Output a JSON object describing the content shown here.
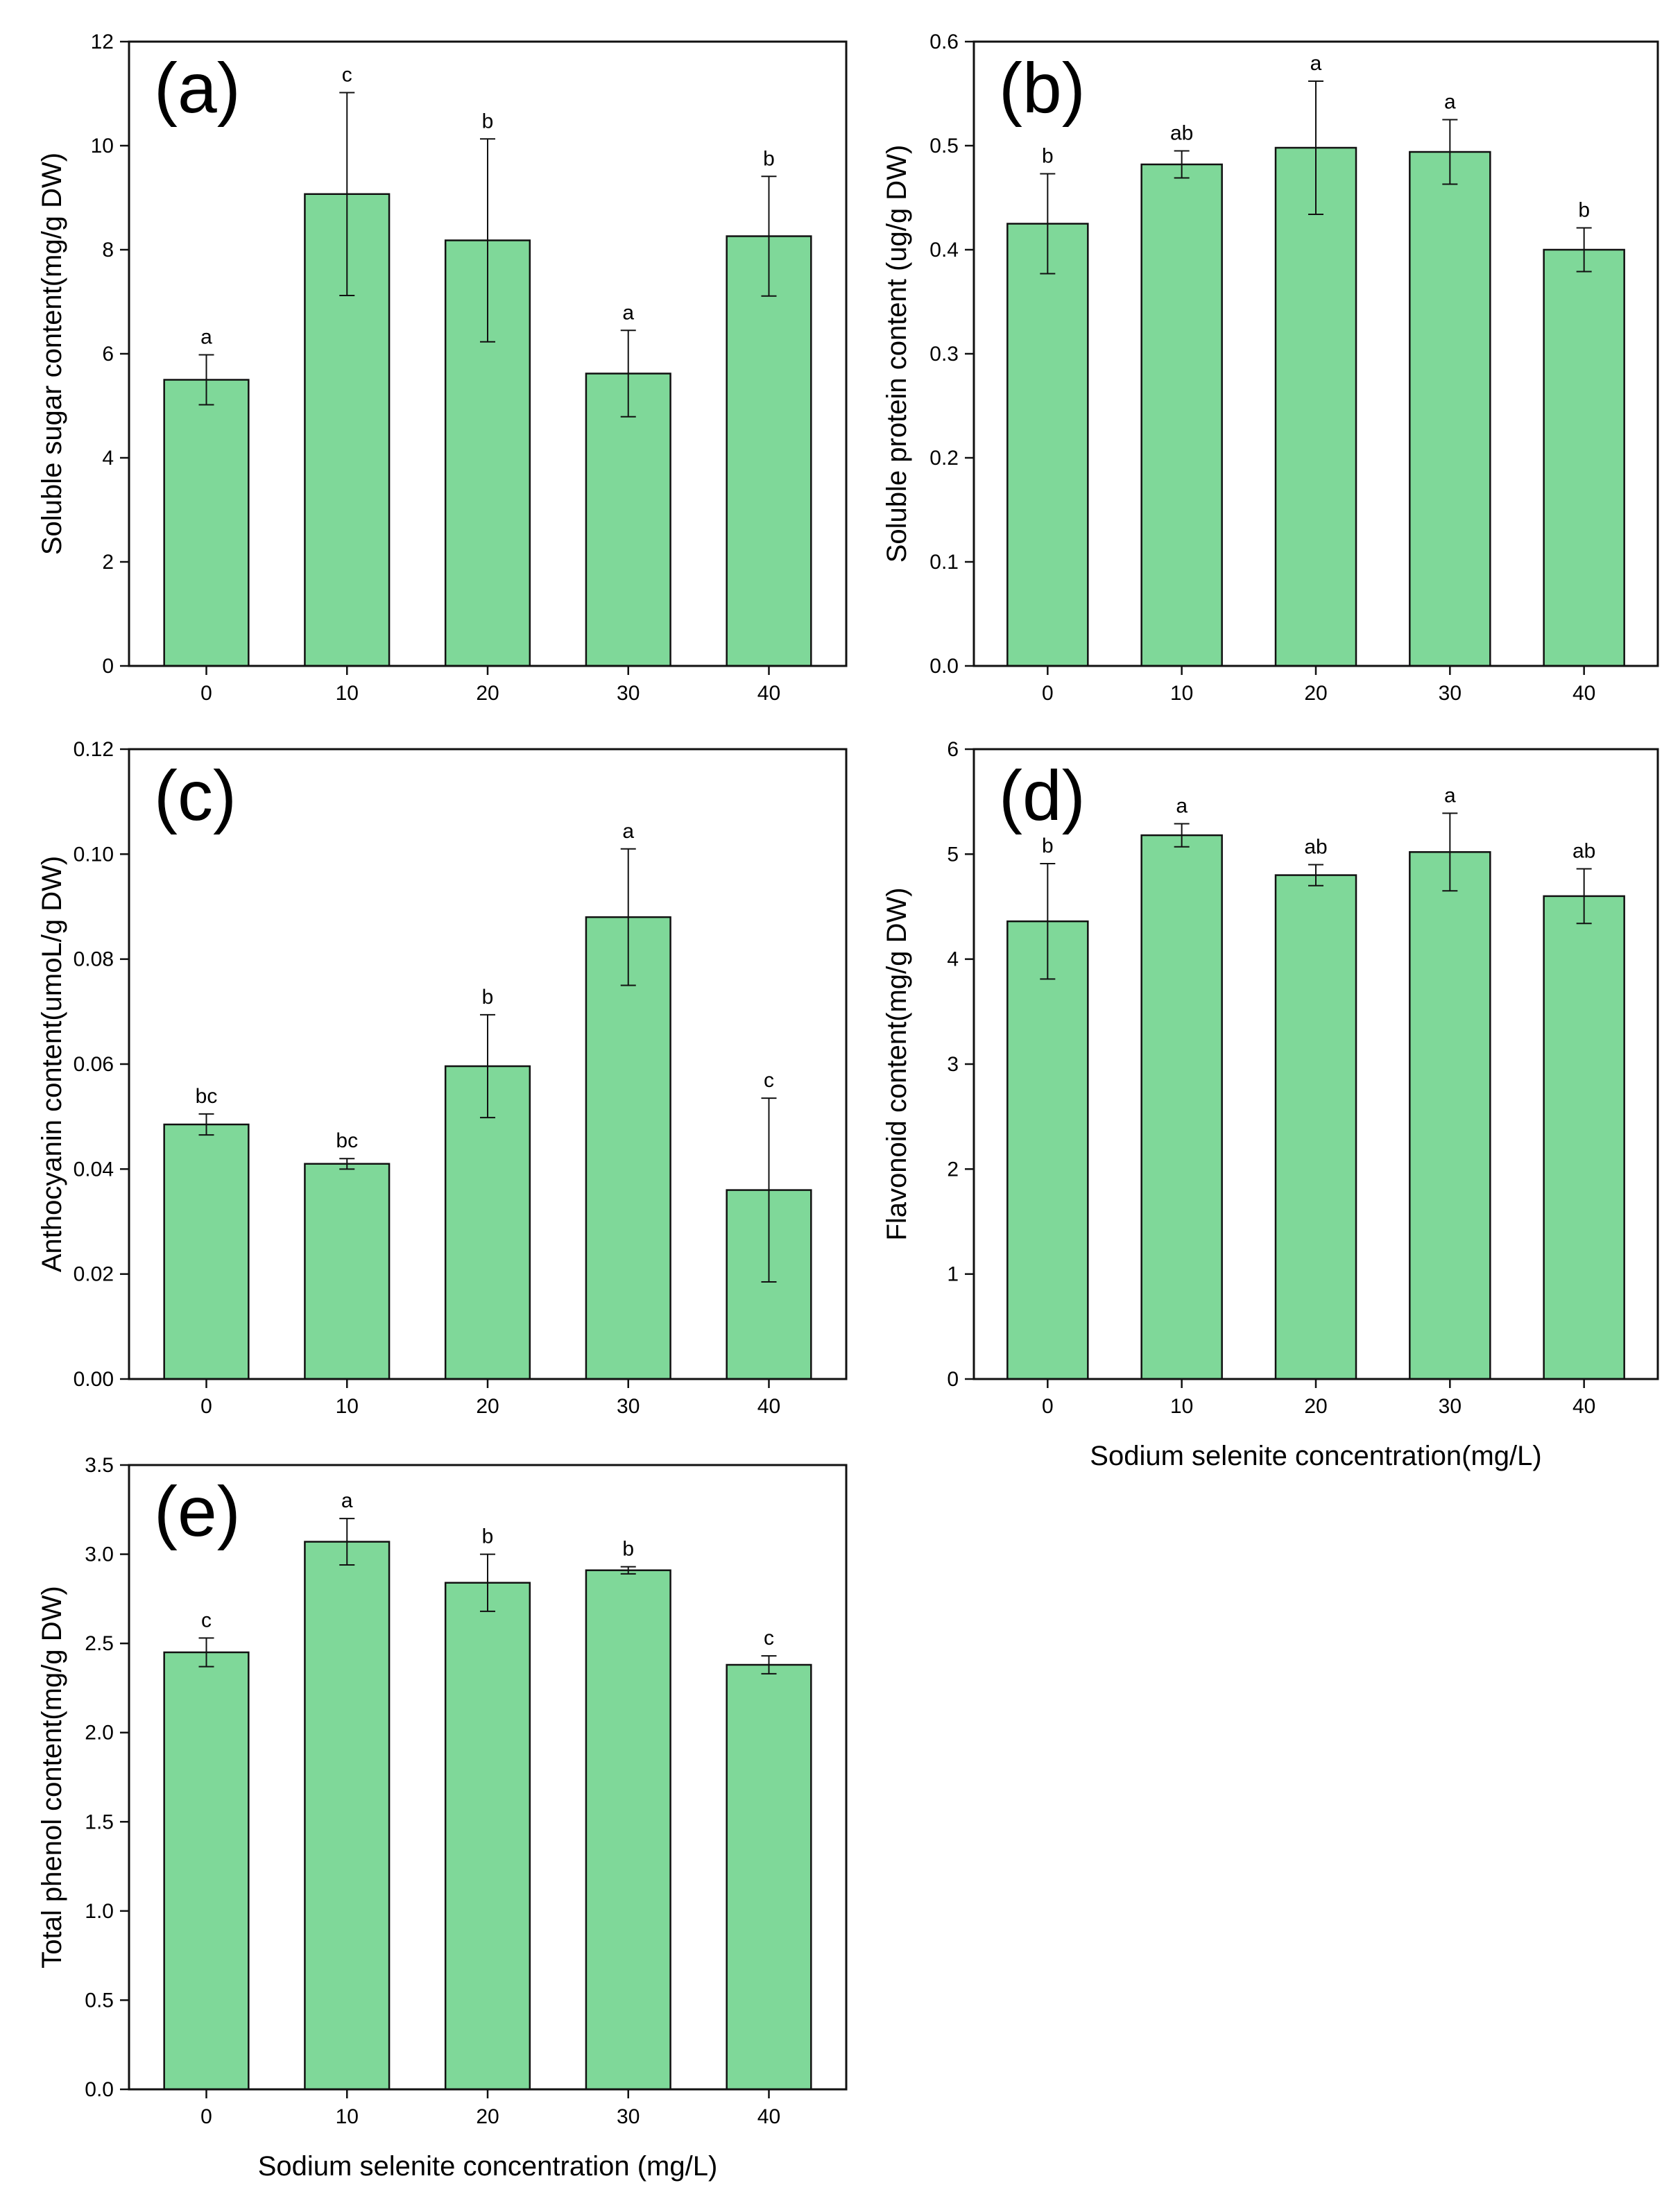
{
  "colors": {
    "bar_fill": "#7fd899",
    "bar_stroke": "#111111",
    "axis": "#111111"
  },
  "chart_data": [
    {
      "type": "bar",
      "panel_label": "(a)",
      "categories": [
        "0",
        "10",
        "20",
        "30",
        "40"
      ],
      "values": [
        5.5,
        9.07,
        8.18,
        5.62,
        8.26
      ],
      "errors": [
        0.48,
        1.95,
        1.95,
        0.83,
        1.15
      ],
      "significance": [
        "a",
        "c",
        "b",
        "a",
        "b"
      ],
      "ylabel": "Soluble sugar content(mg/g DW)",
      "xlabel": "",
      "ylim": [
        0,
        12
      ],
      "yticks": [
        0,
        2,
        4,
        6,
        8,
        10,
        12
      ],
      "ytick_labels": [
        "0",
        "2",
        "4",
        "6",
        "8",
        "10",
        "12"
      ]
    },
    {
      "type": "bar",
      "panel_label": "(b)",
      "categories": [
        "0",
        "10",
        "20",
        "30",
        "40"
      ],
      "values": [
        0.425,
        0.482,
        0.498,
        0.494,
        0.4
      ],
      "errors": [
        0.048,
        0.013,
        0.064,
        0.031,
        0.021
      ],
      "significance": [
        "b",
        "ab",
        "a",
        "a",
        "b"
      ],
      "ylabel": "Soluble protein content (ug/g DW)",
      "xlabel": "",
      "ylim": [
        0,
        0.6
      ],
      "yticks": [
        0,
        0.1,
        0.2,
        0.3,
        0.4,
        0.5,
        0.6
      ],
      "ytick_labels": [
        "0.0",
        "0.1",
        "0.2",
        "0.3",
        "0.4",
        "0.5",
        "0.6"
      ]
    },
    {
      "type": "bar",
      "panel_label": "(c)",
      "categories": [
        "0",
        "10",
        "20",
        "30",
        "40"
      ],
      "values": [
        0.0485,
        0.041,
        0.0596,
        0.088,
        0.036
      ],
      "errors": [
        0.002,
        0.001,
        0.0098,
        0.013,
        0.0175
      ],
      "significance": [
        "bc",
        "bc",
        "b",
        "a",
        "c"
      ],
      "ylabel": "Anthocyanin content(umoL/g DW)",
      "xlabel": "",
      "ylim": [
        0,
        0.12
      ],
      "yticks": [
        0,
        0.02,
        0.04,
        0.06,
        0.08,
        0.1,
        0.12
      ],
      "ytick_labels": [
        "0.00",
        "0.02",
        "0.04",
        "0.06",
        "0.08",
        "0.10",
        "0.12"
      ]
    },
    {
      "type": "bar",
      "panel_label": "(d)",
      "categories": [
        "0",
        "10",
        "20",
        "30",
        "40"
      ],
      "values": [
        4.36,
        5.18,
        4.8,
        5.02,
        4.6
      ],
      "errors": [
        0.55,
        0.11,
        0.1,
        0.37,
        0.26
      ],
      "significance": [
        "b",
        "a",
        "ab",
        "a",
        "ab"
      ],
      "ylabel": "Flavonoid content(mg/g DW)",
      "xlabel": "Sodium selenite concentration(mg/L)",
      "ylim": [
        0,
        6
      ],
      "yticks": [
        0,
        1,
        2,
        3,
        4,
        5,
        6
      ],
      "ytick_labels": [
        "0",
        "1",
        "2",
        "3",
        "4",
        "5",
        "6"
      ]
    },
    {
      "type": "bar",
      "panel_label": "(e)",
      "categories": [
        "0",
        "10",
        "20",
        "30",
        "40"
      ],
      "values": [
        2.45,
        3.07,
        2.84,
        2.91,
        2.38
      ],
      "errors": [
        0.08,
        0.13,
        0.16,
        0.02,
        0.05
      ],
      "significance": [
        "c",
        "a",
        "b",
        "b",
        "c"
      ],
      "ylabel": "Total phenol content(mg/g DW)",
      "xlabel": "Sodium selenite concentration (mg/L)",
      "ylim": [
        0,
        3.5
      ],
      "yticks": [
        0,
        0.5,
        1,
        1.5,
        2,
        2.5,
        3,
        3.5
      ],
      "ytick_labels": [
        "0.0",
        "0.5",
        "1.0",
        "1.5",
        "2.0",
        "2.5",
        "3.0",
        "3.5"
      ]
    }
  ]
}
